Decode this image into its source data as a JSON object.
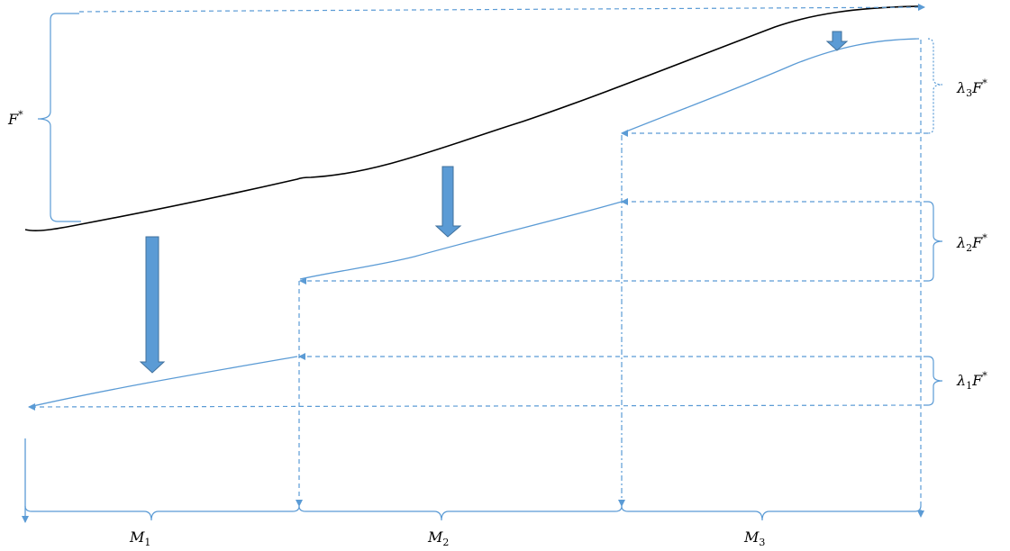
{
  "labels": {
    "f_star": {
      "main": "F",
      "sup": "*"
    },
    "lambda3": {
      "main": "λ",
      "sub": "3",
      "rest": "F",
      "sup": "*"
    },
    "lambda2": {
      "main": "λ",
      "sub": "2",
      "rest": "F",
      "sup": "*"
    },
    "lambda1": {
      "main": "λ",
      "sub": "1",
      "rest": "F",
      "sup": "*"
    },
    "m1": {
      "main": "M",
      "sub": "1"
    },
    "m2": {
      "main": "M",
      "sub": "2"
    },
    "m3": {
      "main": "M",
      "sub": "3"
    }
  },
  "colors": {
    "line": "#5b9bd5",
    "curve": "#000000",
    "arrow_fill": "#5b9bd5",
    "arrow_stroke": "#41719c"
  }
}
